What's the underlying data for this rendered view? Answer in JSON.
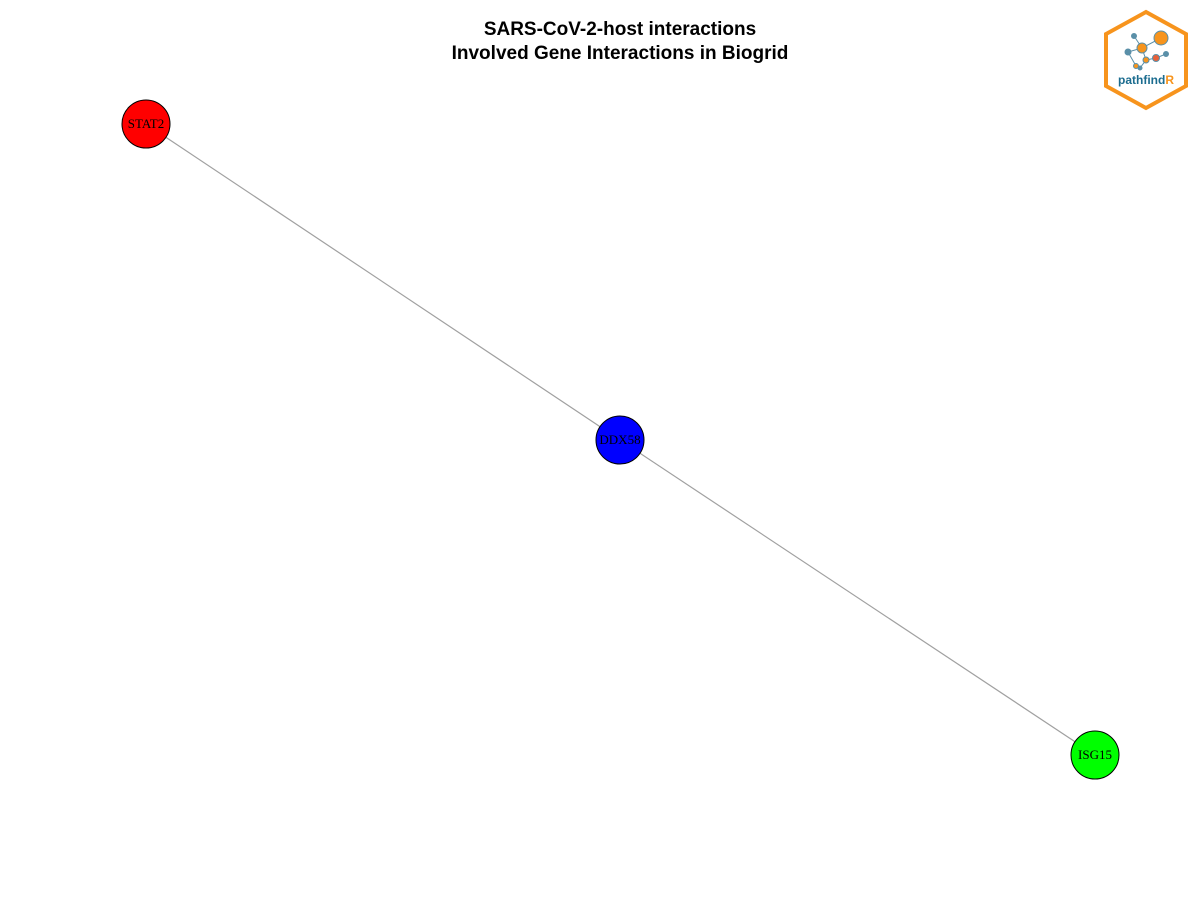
{
  "title": {
    "line1": "SARS-CoV-2-host interactions",
    "line2": "Involved Gene Interactions in Biogrid"
  },
  "network": {
    "nodes": [
      {
        "id": "STAT2",
        "label": "STAT2",
        "color": "#ff0000"
      },
      {
        "id": "DDX58",
        "label": "DDX58",
        "color": "#0000ff"
      },
      {
        "id": "ISG15",
        "label": "ISG15",
        "color": "#00ff00"
      }
    ],
    "edges": [
      {
        "source": "STAT2",
        "target": "DDX58"
      },
      {
        "source": "DDX58",
        "target": "ISG15"
      }
    ]
  },
  "logo": {
    "text_main": "pathfind",
    "text_accent": "R",
    "border_color": "#f7941d",
    "text_color": "#1b6c8f",
    "accent_color": "#f7941d"
  }
}
